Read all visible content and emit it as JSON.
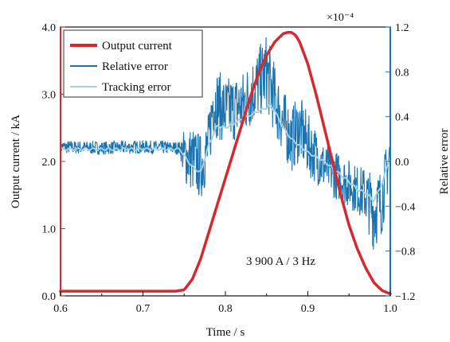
{
  "chart_data": {
    "type": "line",
    "xlabel": "Time / s",
    "ylabel_left": "Output current / kA",
    "ylabel_right": "Relative error",
    "right_axis_multiplier": "×10⁻⁴",
    "annotation": "3 900 A / 3 Hz",
    "xlim": [
      0.6,
      1.0
    ],
    "ylim_left": [
      0.0,
      4.0
    ],
    "ylim_right": [
      -1.2,
      1.2
    ],
    "x_ticks": [
      "0.6",
      "0.7",
      "0.8",
      "0.9",
      "1.0"
    ],
    "y_left_ticks": [
      "0.0",
      "1.0",
      "2.0",
      "3.0",
      "4.0"
    ],
    "y_right_ticks": [
      "−1.2",
      "−0.8",
      "−0.4",
      "0.0",
      "0.4",
      "0.8",
      "1.2"
    ],
    "grid": false,
    "legend_position": "top-left",
    "colors": {
      "output_current": "#d6282e",
      "relative_error": "#1c73b0",
      "tracking_error": "#9fd3e6",
      "left_axis": "#d6282e",
      "right_axis": "#1c73b0"
    },
    "series": [
      {
        "name": "Output current",
        "axis": "left",
        "unit": "kA",
        "x": [
          0.6,
          0.7,
          0.74,
          0.75,
          0.76,
          0.77,
          0.78,
          0.79,
          0.8,
          0.81,
          0.82,
          0.83,
          0.84,
          0.85,
          0.86,
          0.87,
          0.875,
          0.88,
          0.885,
          0.89,
          0.9,
          0.91,
          0.92,
          0.93,
          0.94,
          0.95,
          0.96,
          0.97,
          0.98,
          0.99,
          1.0
        ],
        "y": [
          0.07,
          0.07,
          0.07,
          0.09,
          0.25,
          0.55,
          0.95,
          1.35,
          1.75,
          2.15,
          2.55,
          2.95,
          3.3,
          3.58,
          3.78,
          3.9,
          3.92,
          3.92,
          3.88,
          3.78,
          3.45,
          3.0,
          2.5,
          2.0,
          1.5,
          1.05,
          0.7,
          0.42,
          0.2,
          0.08,
          0.03
        ]
      },
      {
        "name": "Relative error",
        "axis": "right",
        "unit": "×10⁻⁴",
        "x": [
          0.6,
          0.65,
          0.7,
          0.745,
          0.75,
          0.76,
          0.77,
          0.78,
          0.785,
          0.8,
          0.82,
          0.84,
          0.85,
          0.86,
          0.87,
          0.88,
          0.89,
          0.9,
          0.91,
          0.92,
          0.93,
          0.94,
          0.95,
          0.96,
          0.97,
          0.98,
          0.99,
          1.0
        ],
        "y": [
          0.13,
          0.12,
          0.13,
          0.12,
          0.05,
          0.02,
          -0.05,
          0.15,
          0.55,
          0.45,
          0.5,
          0.7,
          0.8,
          0.55,
          0.35,
          0.2,
          0.3,
          0.15,
          0.05,
          -0.05,
          -0.1,
          -0.15,
          -0.2,
          -0.25,
          -0.3,
          -0.45,
          -0.35,
          0.1
        ],
        "band": [
          0.06,
          0.06,
          0.06,
          0.06,
          0.25,
          0.3,
          0.3,
          0.3,
          0.32,
          0.3,
          0.3,
          0.32,
          0.35,
          0.32,
          0.3,
          0.3,
          0.3,
          0.28,
          0.25,
          0.22,
          0.22,
          0.22,
          0.22,
          0.22,
          0.25,
          0.35,
          0.3,
          0.25
        ]
      },
      {
        "name": "Tracking error",
        "axis": "right",
        "unit": "×10⁻⁴",
        "x": [
          0.6,
          0.65,
          0.7,
          0.745,
          0.75,
          0.76,
          0.77,
          0.78,
          0.79,
          0.8,
          0.82,
          0.84,
          0.85,
          0.855,
          0.86,
          0.87,
          0.88,
          0.9,
          0.92,
          0.94,
          0.95,
          0.96,
          0.97,
          0.98,
          0.99,
          1.0
        ],
        "y": [
          0.11,
          0.11,
          0.11,
          0.11,
          0.05,
          -0.05,
          -0.1,
          0.15,
          0.32,
          0.3,
          0.38,
          0.45,
          0.48,
          0.5,
          0.45,
          0.3,
          0.2,
          0.08,
          0.0,
          -0.12,
          -0.18,
          -0.25,
          -0.28,
          -0.35,
          -0.2,
          0.05
        ]
      }
    ]
  }
}
